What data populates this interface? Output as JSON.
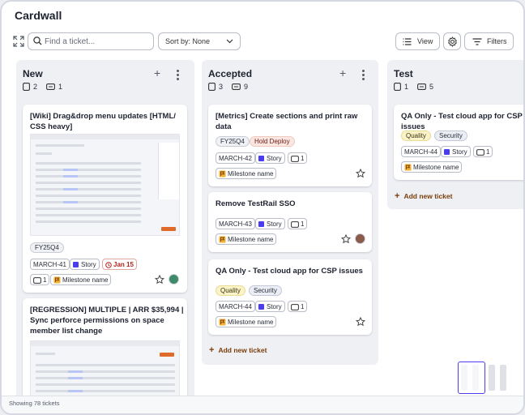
{
  "app": {
    "title": "Cardwall"
  },
  "toolbar": {
    "search_placeholder": "Find a ticket...",
    "sort_label": "Sort by: None",
    "view_label": "View",
    "filters_label": "Filters"
  },
  "columns": [
    {
      "name": "New",
      "card_count": "2",
      "subtask_count": "1",
      "cards": [
        {
          "title_line1": "[Wiki] Drag&drop menu updates [HTML/",
          "title_line2": "CSS heavy]",
          "tag": "FY25Q4",
          "id": "MARCH-41",
          "type": "Story",
          "due": "Jan 15",
          "comments": "1",
          "milestone": "Milestone name"
        },
        {
          "title_line1": "[REGRESSION] MULTIPLE | ARR $35,994 |",
          "title_line2": "Sync perforce permissions on space",
          "title_line3": "member list change"
        }
      ]
    },
    {
      "name": "Accepted",
      "card_count": "3",
      "subtask_count": "9",
      "cards": [
        {
          "title_line1": "[Metrics] Create sections and print raw",
          "title_line2": "data",
          "tags": [
            "FY25Q4",
            "Hold Deploy"
          ],
          "id": "MARCH-42",
          "type": "Story",
          "comments": "1",
          "milestone": "Milestone name"
        },
        {
          "title_line1": "Remove TestRail SSO",
          "id": "MARCH-43",
          "type": "Story",
          "comments": "1",
          "milestone": "Milestone name"
        },
        {
          "title_line1": "QA Only - Test cloud app for CSP issues",
          "tags": [
            "Quality",
            "Security"
          ],
          "id": "MARCH-44",
          "type": "Story",
          "comments": "1",
          "milestone": "Milestone name"
        }
      ],
      "add_label": "Add new ticket"
    },
    {
      "name": "Test",
      "card_count": "1",
      "subtask_count": "5",
      "cards": [
        {
          "title_line1": "QA Only - Test cloud app for CSP issues",
          "tags": [
            "Quality",
            "Security"
          ],
          "id": "MARCH-44",
          "type": "Story",
          "comments": "1",
          "milestone": "Milestone name"
        }
      ],
      "add_label": "Add new ticket"
    }
  ],
  "status": {
    "text": "Showing 78 tickets"
  },
  "colors": {
    "story": "#4a3df0",
    "due_red": "#b4231a",
    "accent_orange": "#7a3d0c"
  }
}
